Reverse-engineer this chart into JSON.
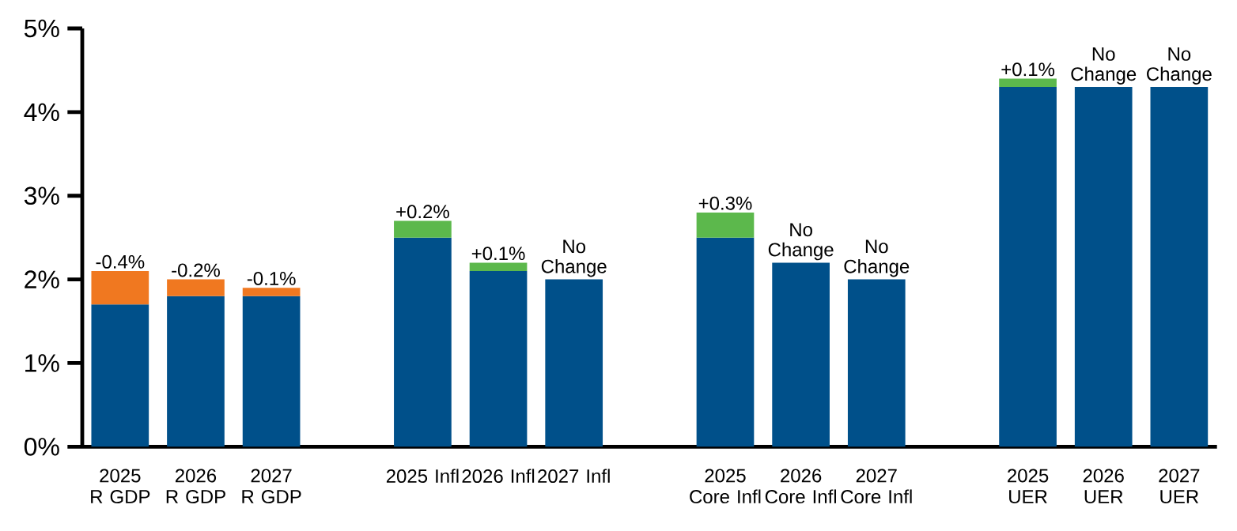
{
  "chart_data": {
    "type": "bar",
    "categories": [
      "2025 R GDP",
      "2026 R GDP",
      "2027 R GDP",
      null,
      "2025 Infl",
      "2026 Infl",
      "2027 Infl",
      null,
      "2025 Core Infl",
      "2026 Core Infl",
      "2027 Core Infl",
      null,
      "2025 UER",
      "2026 UER",
      "2027 UER"
    ],
    "series": [
      {
        "color": "#00508a",
        "values": [
          1.7,
          1.8,
          1.8,
          null,
          2.5,
          2.1,
          2.0,
          null,
          2.5,
          2.2,
          2.0,
          null,
          4.3,
          4.3,
          4.3
        ]
      },
      {
        "color": "#f07820",
        "base": [
          2.1,
          2.0,
          1.9,
          null,
          null,
          null,
          null,
          null,
          null,
          null,
          null,
          null,
          null,
          null,
          null
        ],
        "values": [
          -0.4,
          -0.2,
          -0.1,
          null,
          null,
          null,
          null,
          null,
          null,
          null,
          null,
          null,
          null,
          null,
          null
        ],
        "value_labels": [
          "-0.4%",
          "-0.2%",
          "-0.1%",
          null,
          null,
          null,
          null,
          null,
          null,
          null,
          null,
          null,
          null,
          null,
          null
        ]
      },
      {
        "color": "#5cb84c",
        "base": [
          null,
          null,
          null,
          null,
          2.5,
          2.1,
          null,
          null,
          2.5,
          null,
          null,
          null,
          4.3,
          null,
          null
        ],
        "values": [
          null,
          null,
          null,
          null,
          0.2,
          0.1,
          null,
          null,
          0.3,
          null,
          null,
          null,
          0.1,
          null,
          null
        ],
        "value_labels": [
          null,
          null,
          null,
          null,
          "+0.2%",
          "+0.1%",
          "No Change",
          null,
          "+0.3%",
          "No Change",
          "No Change",
          null,
          "+0.1%",
          "No Change",
          "No Change"
        ]
      }
    ],
    "ylim": [
      0,
      5
    ],
    "yticks": [
      {
        "value": 0,
        "label": "0%"
      },
      {
        "value": 1,
        "label": "1%"
      },
      {
        "value": 2,
        "label": "2%"
      },
      {
        "value": 3,
        "label": "3%"
      },
      {
        "value": 4,
        "label": "4%"
      },
      {
        "value": 5,
        "label": "5%"
      }
    ]
  }
}
